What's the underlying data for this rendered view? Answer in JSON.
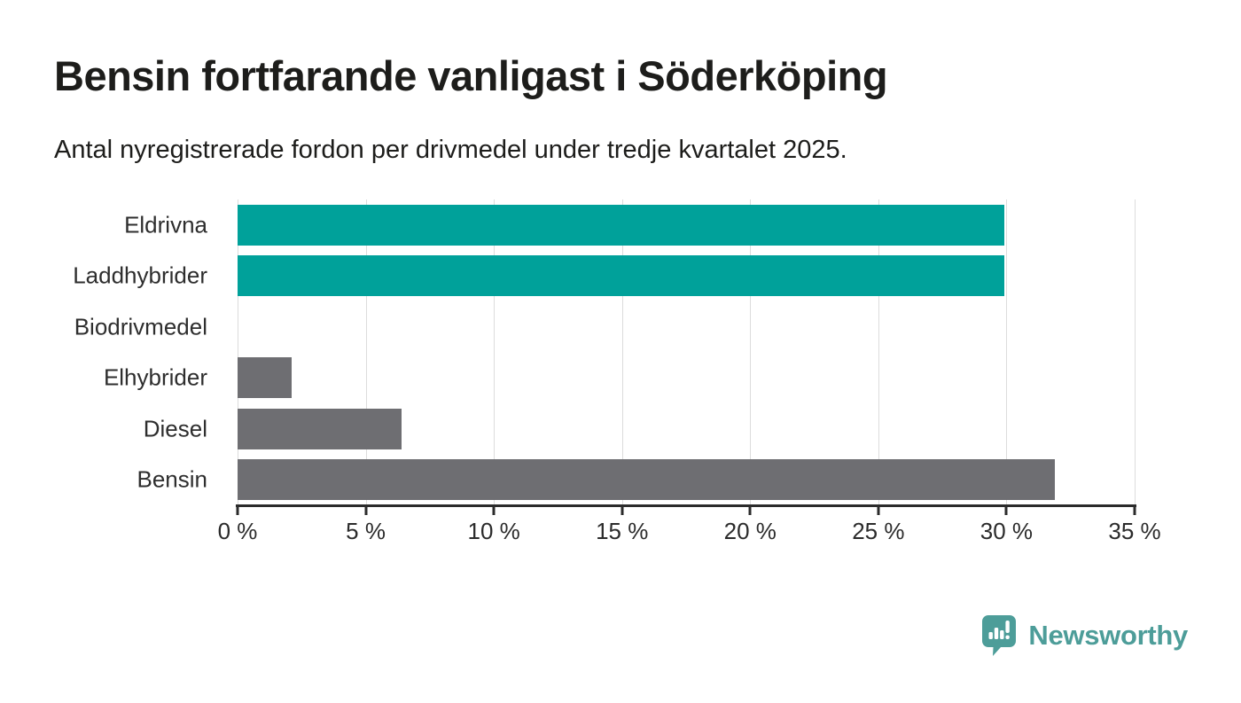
{
  "header": {
    "title": "Bensin fortfarande vanligast i Söderköping",
    "subtitle": "Antal nyregistrerade fordon per drivmedel under tredje kvartalet 2025."
  },
  "chart_data": {
    "type": "bar",
    "orientation": "horizontal",
    "title": "Bensin fortfarande vanligast i Söderköping",
    "subtitle": "Antal nyregistrerade fordon per drivmedel under tredje kvartalet 2025.",
    "categories": [
      "Eldrivna",
      "Laddhybrider",
      "Biodrivmedel",
      "Elhybrider",
      "Diesel",
      "Bensin"
    ],
    "values": [
      29.9,
      29.9,
      0,
      2.1,
      6.4,
      31.9
    ],
    "unit": "%",
    "bar_colors": [
      "#00a19a",
      "#00a19a",
      "#6e6e72",
      "#6e6e72",
      "#6e6e72",
      "#6e6e72"
    ],
    "xlim": [
      0,
      35
    ],
    "x_ticks": [
      0,
      5,
      10,
      15,
      20,
      25,
      30,
      35
    ],
    "x_tick_labels": [
      "0 %",
      "5 %",
      "10 %",
      "15 %",
      "20 %",
      "25 %",
      "30 %",
      "35 %"
    ],
    "grid": "vertical",
    "legend": "none"
  },
  "branding": {
    "logo_text": "Newsworthy",
    "logo_icon": "speech-bubble-bar-chart-exclamation",
    "logo_color": "#4d9d99"
  },
  "colors": {
    "accent_teal": "#00a19a",
    "bar_gray": "#6e6e72",
    "gridline": "#dcdcdc",
    "axis": "#2b2b2b",
    "text": "#1d1d1b",
    "background": "#ffffff"
  }
}
